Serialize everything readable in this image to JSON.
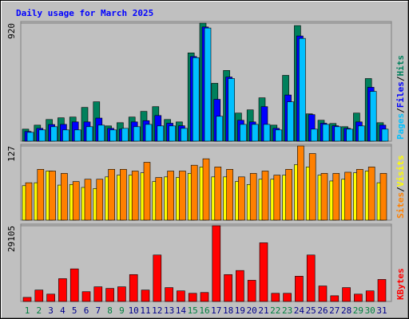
{
  "chart_data": [
    {
      "type": "bar",
      "title": "Daily usage for March 2025",
      "legend_separator": "/",
      "ylim": [
        0,
        920
      ],
      "yticks": [
        920
      ],
      "series": [
        {
          "name": "Hits",
          "color": "#00805c",
          "values": [
            94,
            125,
            169,
            182,
            188,
            263,
            307,
            119,
            144,
            188,
            232,
            269,
            169,
            150,
            688,
            920,
            451,
            551,
            219,
            244,
            338,
            125,
            513,
            901,
            213,
            163,
            138,
            113,
            219,
            488,
            144
          ]
        },
        {
          "name": "Files",
          "color": "#0000ff",
          "values": [
            76,
            100,
            130,
            131,
            150,
            150,
            180,
            100,
            94,
            150,
            160,
            200,
            140,
            120,
            660,
            890,
            326,
            500,
            163,
            150,
            269,
            100,
            360,
            820,
            207,
            140,
            120,
            100,
            150,
            420,
            125
          ]
        },
        {
          "name": "Pages",
          "color": "#00c0ff",
          "values": [
            69,
            88,
            113,
            88,
            88,
            113,
            125,
            88,
            100,
            113,
            131,
            119,
            119,
            100,
            651,
            882,
            194,
            488,
            131,
            131,
            131,
            88,
            307,
            801,
            94,
            131,
            113,
            94,
            119,
            388,
            94
          ]
        }
      ]
    },
    {
      "type": "bar",
      "legend_separator": "/",
      "ylim": [
        0,
        127
      ],
      "yticks": [
        127
      ],
      "series": [
        {
          "name": "Visits",
          "color": "#ffff00",
          "values": [
            59,
            64,
            84,
            60,
            61,
            56,
            54,
            74,
            77,
            77,
            81,
            66,
            74,
            73,
            80,
            91,
            74,
            74,
            66,
            61,
            70,
            70,
            77,
            95,
            91,
            77,
            67,
            70,
            81,
            84,
            64
          ]
        },
        {
          "name": "Sites",
          "color": "#ff8000",
          "values": [
            64,
            87,
            84,
            80,
            66,
            70,
            70,
            87,
            87,
            84,
            99,
            73,
            84,
            84,
            94,
            105,
            91,
            87,
            74,
            80,
            84,
            77,
            87,
            127,
            114,
            80,
            80,
            82,
            87,
            91,
            80
          ]
        }
      ]
    },
    {
      "type": "bar",
      "ylim": [
        0,
        29105
      ],
      "yticks": [
        29105
      ],
      "series": [
        {
          "name": "KBytes",
          "color": "#ff0000",
          "values": [
            1565,
            4382,
            2817,
            8764,
            12520,
            3756,
            5634,
            5008,
            5634,
            10329,
            4382,
            17841,
            5321,
            4069,
            3130,
            3443,
            29105,
            10329,
            11894,
            8138,
            22536,
            3130,
            3130,
            9703,
            17841,
            5947,
            2191,
            5321,
            2817,
            4069,
            8451
          ]
        }
      ],
      "categories": [
        "1",
        "2",
        "3",
        "4",
        "5",
        "6",
        "7",
        "8",
        "9",
        "10",
        "11",
        "12",
        "13",
        "14",
        "15",
        "16",
        "17",
        "18",
        "19",
        "20",
        "21",
        "22",
        "23",
        "24",
        "25",
        "26",
        "27",
        "28",
        "29",
        "30",
        "31"
      ],
      "category_colors": [
        "#008040",
        "#008040",
        "#00008b",
        "#00008b",
        "#00008b",
        "#00008b",
        "#00008b",
        "#008040",
        "#008040",
        "#00008b",
        "#00008b",
        "#00008b",
        "#00008b",
        "#00008b",
        "#008040",
        "#008040",
        "#00008b",
        "#00008b",
        "#00008b",
        "#00008b",
        "#00008b",
        "#008040",
        "#008040",
        "#00008b",
        "#00008b",
        "#00008b",
        "#00008b",
        "#00008b",
        "#008040",
        "#008040",
        "#00008b"
      ]
    }
  ]
}
